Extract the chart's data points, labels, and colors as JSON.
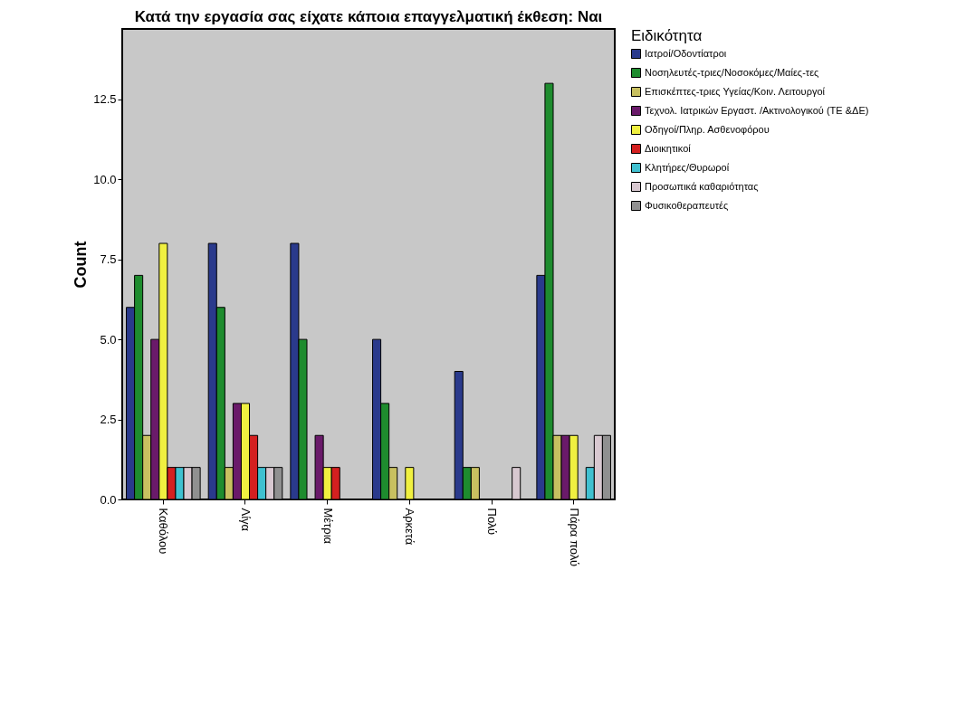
{
  "chart_data": {
    "type": "bar",
    "title": "Κατά την εργασία σας είχατε κάποια επαγγελματική έκθεση: Ναι",
    "ylabel": "Count",
    "legend_title": "Ειδικότητα",
    "legend": "right",
    "categories": [
      "Καθόλου",
      "Λίγα",
      "Μέτρια",
      "Αρκετά",
      "Πολύ",
      "Πάρα πολύ"
    ],
    "ylim": [
      0,
      14.7
    ],
    "yticks": [
      {
        "value": 0,
        "label": "0.0"
      },
      {
        "value": 2.5,
        "label": "2.5"
      },
      {
        "value": 5,
        "label": "5.0"
      },
      {
        "value": 7.5,
        "label": "7.5"
      },
      {
        "value": 10,
        "label": "10.0"
      },
      {
        "value": 12.5,
        "label": "12.5"
      }
    ],
    "series": [
      {
        "name": "Ιατροί/Οδοντίατροι",
        "color": "#2a3a8c",
        "values": [
          6,
          8,
          8,
          5,
          4,
          7
        ]
      },
      {
        "name": "Νοσηλευτές-τριες/Νοσοκόμες/Μαίες-τες",
        "color": "#1e8c2e",
        "values": [
          7,
          6,
          5,
          3,
          1,
          13
        ]
      },
      {
        "name": "Επισκέπτες-τριες Υγείας/Κοιν. Λειτουργοί",
        "color": "#c8c060",
        "values": [
          2,
          1,
          null,
          1,
          1,
          2
        ]
      },
      {
        "name": "Τεχνολ. Ιατρικών Εργαστ. /Ακτινολογικού (ΤΕ &ΔΕ)",
        "color": "#6a1a6a",
        "values": [
          5,
          3,
          2,
          null,
          null,
          2
        ]
      },
      {
        "name": "Οδηγοί/Πληρ. Ασθενοφόρου",
        "color": "#f0f040",
        "values": [
          8,
          3,
          1,
          1,
          null,
          2
        ]
      },
      {
        "name": "Διοικητικοί",
        "color": "#d42020",
        "values": [
          1,
          2,
          1,
          null,
          null,
          null
        ]
      },
      {
        "name": "Κλητήρες/Θυρωροί",
        "color": "#40c0d0",
        "values": [
          1,
          1,
          null,
          null,
          null,
          1
        ]
      },
      {
        "name": "Προσωπικά καθαριότητας",
        "color": "#d8c8d0",
        "values": [
          1,
          1,
          null,
          null,
          1,
          2
        ]
      },
      {
        "name": "Φυσικοθεραπευτές",
        "color": "#909090",
        "values": [
          1,
          1,
          null,
          null,
          null,
          2
        ]
      }
    ]
  }
}
